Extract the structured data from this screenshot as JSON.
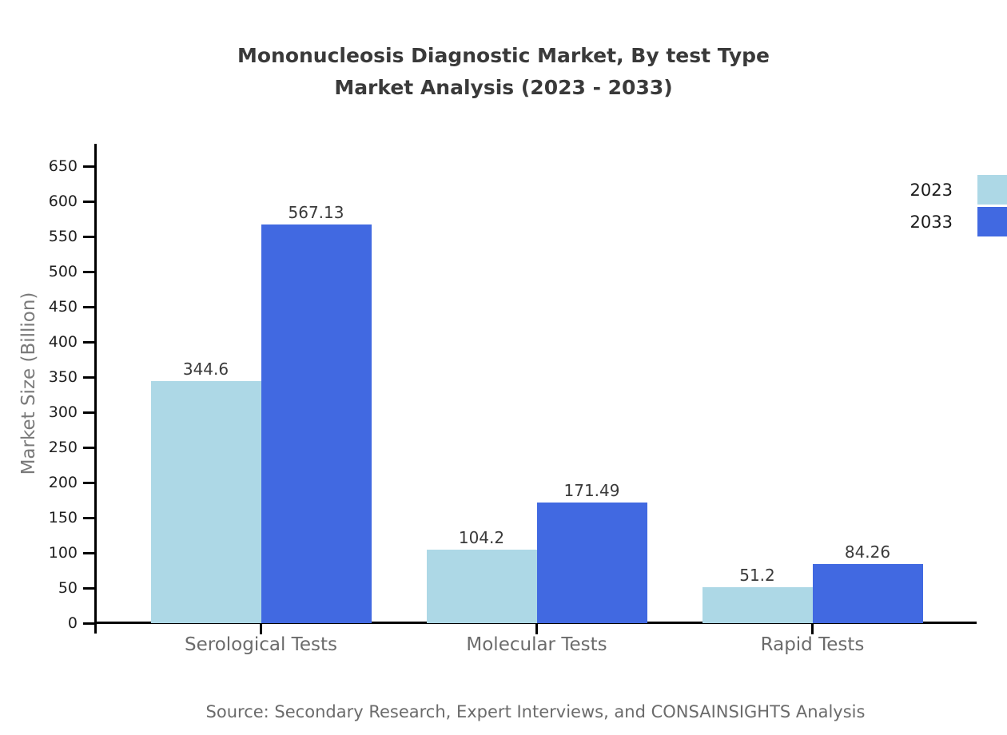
{
  "page": {
    "background": "#ffffff"
  },
  "chart_data": {
    "type": "bar",
    "title_line1": "Mononucleosis Diagnostic Market, By test Type",
    "title_line2": "Market Analysis (2023 - 2033)",
    "ylabel": "Market Size (Billion)",
    "categories": [
      "Serological Tests",
      "Molecular Tests",
      "Rapid Tests"
    ],
    "series": [
      {
        "name": "2023",
        "color": "#add8e6",
        "values": [
          344.6,
          104.2,
          51.2
        ]
      },
      {
        "name": "2033",
        "color": "#4169e1",
        "values": [
          567.13,
          171.49,
          84.26
        ]
      }
    ],
    "yticks": [
      0,
      50,
      100,
      150,
      200,
      250,
      300,
      350,
      400,
      450,
      500,
      550,
      600,
      650
    ],
    "ylim": [
      0,
      682
    ],
    "grid": false,
    "legend_position": "top-right-edge",
    "axis_color": "#000000",
    "title_color": "#3a3a3a",
    "tick_label_color": "#1f1f1f",
    "category_label_color": "#6b6b6b",
    "value_label_color": "#3a3a3a",
    "source": "Source: Secondary Research, Expert Interviews, and CONSAINSIGHTS Analysis"
  }
}
